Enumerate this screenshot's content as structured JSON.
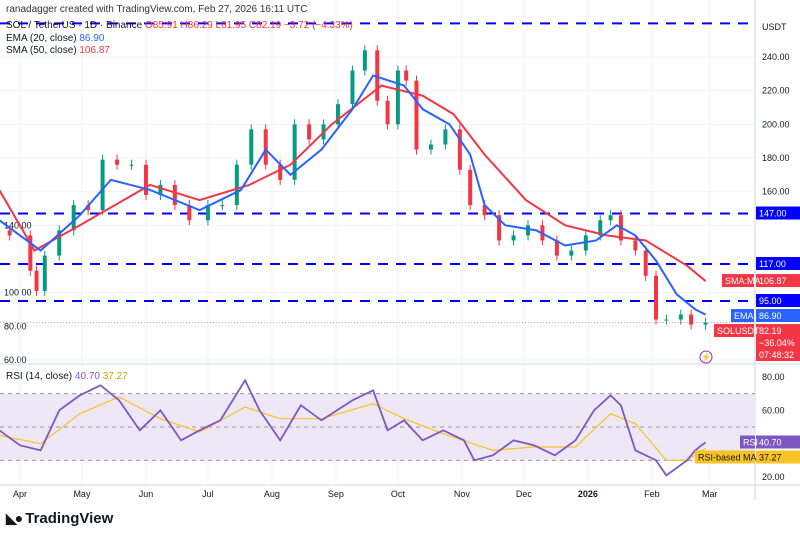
{
  "header": {
    "credit": "ranadagger created with TradingView.com, Feb 27, 2026 16:11 UTC",
    "symbol_line": "SOL / TetherUS · 1D · Binance",
    "ohlc": "O85.91 H86.29 L81.95 C82.19 −3.72 (−4.33%)",
    "ema_label": "EMA (20, close)",
    "ema_value": "86.90",
    "sma_label": "SMA (50, close)",
    "sma_value": "106.87",
    "rsi_label": "RSI (14, close)",
    "rsi_value": "40.70",
    "rsi_ma_value": "37.27"
  },
  "logo": {
    "text": "TradingView"
  },
  "currency": "USDT",
  "colors": {
    "up": "#089981",
    "down": "#f23645",
    "ema": "#2962ff",
    "sma": "#f23645",
    "level": "#0000ff",
    "rsi": "#7e57c2",
    "rsi_ma": "#f7c325",
    "rsi_band": "#ede7f6"
  },
  "badges": {
    "l147": "147.00",
    "l117": "117.00",
    "l95": "95.00",
    "sma_tag": "SMA:MA",
    "sma_val": "106.87",
    "ema_tag": "EMA",
    "ema_val": "86.90",
    "sym_tag": "SOLUSDT",
    "price": "82.19",
    "change": "−36.04%",
    "countdown": "07:48:32",
    "rsi_tag": "RSI",
    "rsi_val": "40.70",
    "rsima_tag": "RSI-based MA",
    "rsima_val": "37.27"
  },
  "chart_data": [
    {
      "type": "candlestick",
      "pane": "price",
      "yticks": [
        60,
        80,
        100,
        140,
        160,
        180,
        200,
        220,
        240
      ],
      "ylim": [
        55,
        265
      ],
      "xlim": [
        "2025-03-22",
        "2026-03-20"
      ],
      "xticks": [
        "Apr",
        "May",
        "Jun",
        "Jul",
        "Aug",
        "Sep",
        "Oct",
        "Nov",
        "Dec",
        "2026",
        "Feb",
        "Mar"
      ],
      "xtick_dates": [
        "2025-04-01",
        "2025-05-01",
        "2025-06-01",
        "2025-07-01",
        "2025-08-01",
        "2025-09-01",
        "2025-10-01",
        "2025-11-01",
        "2025-12-01",
        "2026-01-01",
        "2026-02-01",
        "2026-03-01"
      ],
      "grid": true,
      "levels": [
        260,
        147,
        117,
        95
      ],
      "closes": [
        [
          "2025-03-22",
          137
        ],
        [
          "2025-03-27",
          134
        ],
        [
          "2025-04-06",
          113
        ],
        [
          "2025-04-09",
          101
        ],
        [
          "2025-04-13",
          122
        ],
        [
          "2025-04-20",
          137
        ],
        [
          "2025-04-27",
          152
        ],
        [
          "2025-05-04",
          149
        ],
        [
          "2025-05-11",
          179
        ],
        [
          "2025-05-18",
          176
        ],
        [
          "2025-05-25",
          176
        ],
        [
          "2025-06-01",
          158
        ],
        [
          "2025-06-08",
          164
        ],
        [
          "2025-06-15",
          152
        ],
        [
          "2025-06-22",
          143
        ],
        [
          "2025-07-01",
          152
        ],
        [
          "2025-07-08",
          152
        ],
        [
          "2025-07-15",
          176
        ],
        [
          "2025-07-22",
          197
        ],
        [
          "2025-07-29",
          176
        ],
        [
          "2025-08-05",
          167
        ],
        [
          "2025-08-12",
          200
        ],
        [
          "2025-08-19",
          191
        ],
        [
          "2025-08-26",
          200
        ],
        [
          "2025-09-02",
          212
        ],
        [
          "2025-09-09",
          232
        ],
        [
          "2025-09-15",
          244
        ],
        [
          "2025-09-21",
          214
        ],
        [
          "2025-09-26",
          200
        ],
        [
          "2025-10-01",
          232
        ],
        [
          "2025-10-05",
          226
        ],
        [
          "2025-10-10",
          185
        ],
        [
          "2025-10-17",
          188
        ],
        [
          "2025-10-24",
          197
        ],
        [
          "2025-10-31",
          173
        ],
        [
          "2025-11-05",
          152
        ],
        [
          "2025-11-12",
          146
        ],
        [
          "2025-11-19",
          131
        ],
        [
          "2025-11-26",
          134
        ],
        [
          "2025-12-03",
          140
        ],
        [
          "2025-12-10",
          131
        ],
        [
          "2025-12-17",
          122
        ],
        [
          "2025-12-24",
          125
        ],
        [
          "2025-12-31",
          134
        ],
        [
          "2026-01-07",
          143
        ],
        [
          "2026-01-12",
          146
        ],
        [
          "2026-01-17",
          131
        ],
        [
          "2026-01-24",
          125
        ],
        [
          "2026-01-29",
          110
        ],
        [
          "2026-02-03",
          84
        ],
        [
          "2026-02-08",
          84
        ],
        [
          "2026-02-15",
          87
        ],
        [
          "2026-02-20",
          81
        ],
        [
          "2026-02-27",
          82.19
        ]
      ],
      "series": [
        {
          "name": "EMA (20, close)",
          "values": [
            [
              "2025-03-22",
              143
            ],
            [
              "2025-04-11",
              125
            ],
            [
              "2025-04-30",
              146
            ],
            [
              "2025-05-15",
              167
            ],
            [
              "2025-06-03",
              161
            ],
            [
              "2025-06-27",
              149
            ],
            [
              "2025-07-17",
              161
            ],
            [
              "2025-07-29",
              185
            ],
            [
              "2025-08-10",
              170
            ],
            [
              "2025-08-25",
              185
            ],
            [
              "2025-09-09",
              209
            ],
            [
              "2025-09-19",
              229
            ],
            [
              "2025-10-04",
              223
            ],
            [
              "2025-10-13",
              209
            ],
            [
              "2025-10-26",
              200
            ],
            [
              "2025-11-05",
              182
            ],
            [
              "2025-11-12",
              152
            ],
            [
              "2025-11-22",
              140
            ],
            [
              "2025-12-07",
              137
            ],
            [
              "2025-12-21",
              128
            ],
            [
              "2026-01-05",
              131
            ],
            [
              "2026-01-15",
              140
            ],
            [
              "2026-01-24",
              134
            ],
            [
              "2026-02-03",
              119
            ],
            [
              "2026-02-13",
              99
            ],
            [
              "2026-02-22",
              90
            ],
            [
              "2026-02-27",
              86.9
            ]
          ]
        },
        {
          "name": "SMA (50, close)",
          "values": [
            [
              "2025-03-22",
              161
            ],
            [
              "2025-04-08",
              125
            ],
            [
              "2025-04-30",
              140
            ],
            [
              "2025-06-03",
              164
            ],
            [
              "2025-06-27",
              155
            ],
            [
              "2025-07-21",
              164
            ],
            [
              "2025-08-10",
              176
            ],
            [
              "2025-08-30",
              200
            ],
            [
              "2025-09-23",
              223
            ],
            [
              "2025-10-13",
              217
            ],
            [
              "2025-10-28",
              206
            ],
            [
              "2025-11-12",
              182
            ],
            [
              "2025-12-02",
              155
            ],
            [
              "2025-12-21",
              140
            ],
            [
              "2026-01-10",
              134
            ],
            [
              "2026-01-29",
              131
            ],
            [
              "2026-02-18",
              116
            ],
            [
              "2026-02-27",
              106.87
            ]
          ]
        }
      ]
    },
    {
      "type": "line",
      "pane": "rsi",
      "yticks": [
        20,
        60,
        80
      ],
      "ylim": [
        15,
        85
      ],
      "bands": [
        30,
        50,
        70
      ],
      "series": [
        {
          "name": "RSI",
          "values": [
            [
              "2025-03-22",
              48
            ],
            [
              "2025-04-01",
              39
            ],
            [
              "2025-04-11",
              36
            ],
            [
              "2025-04-20",
              60
            ],
            [
              "2025-04-30",
              69
            ],
            [
              "2025-05-10",
              75
            ],
            [
              "2025-05-19",
              66
            ],
            [
              "2025-05-29",
              48
            ],
            [
              "2025-06-08",
              60
            ],
            [
              "2025-06-18",
              42
            ],
            [
              "2025-06-27",
              48
            ],
            [
              "2025-07-07",
              54
            ],
            [
              "2025-07-19",
              78
            ],
            [
              "2025-07-26",
              60
            ],
            [
              "2025-08-05",
              42
            ],
            [
              "2025-08-15",
              63
            ],
            [
              "2025-08-25",
              54
            ],
            [
              "2025-09-09",
              66
            ],
            [
              "2025-09-19",
              72
            ],
            [
              "2025-09-26",
              48
            ],
            [
              "2025-10-04",
              54
            ],
            [
              "2025-10-13",
              42
            ],
            [
              "2025-10-23",
              48
            ],
            [
              "2025-11-02",
              42
            ],
            [
              "2025-11-07",
              30
            ],
            [
              "2025-11-16",
              33
            ],
            [
              "2025-11-26",
              42
            ],
            [
              "2025-12-06",
              39
            ],
            [
              "2025-12-16",
              33
            ],
            [
              "2025-12-26",
              42
            ],
            [
              "2026-01-04",
              60
            ],
            [
              "2026-01-12",
              69
            ],
            [
              "2026-01-17",
              63
            ],
            [
              "2026-01-24",
              36
            ],
            [
              "2026-02-03",
              30
            ],
            [
              "2026-02-08",
              21
            ],
            [
              "2026-02-18",
              30
            ],
            [
              "2026-02-22",
              36
            ],
            [
              "2026-02-25",
              39
            ],
            [
              "2026-02-27",
              40.7
            ]
          ]
        },
        {
          "name": "RSI-based MA",
          "values": [
            [
              "2025-03-22",
              45
            ],
            [
              "2025-04-11",
              40
            ],
            [
              "2025-04-30",
              58
            ],
            [
              "2025-05-19",
              68
            ],
            [
              "2025-06-08",
              55
            ],
            [
              "2025-06-27",
              47
            ],
            [
              "2025-07-19",
              62
            ],
            [
              "2025-08-05",
              55
            ],
            [
              "2025-08-25",
              55
            ],
            [
              "2025-09-19",
              64
            ],
            [
              "2025-10-04",
              55
            ],
            [
              "2025-10-23",
              46
            ],
            [
              "2025-11-16",
              36
            ],
            [
              "2025-12-06",
              38
            ],
            [
              "2025-12-26",
              38
            ],
            [
              "2026-01-12",
              58
            ],
            [
              "2026-01-24",
              52
            ],
            [
              "2026-02-08",
              30
            ],
            [
              "2026-02-18",
              30
            ],
            [
              "2026-02-27",
              37.27
            ]
          ]
        }
      ]
    }
  ]
}
